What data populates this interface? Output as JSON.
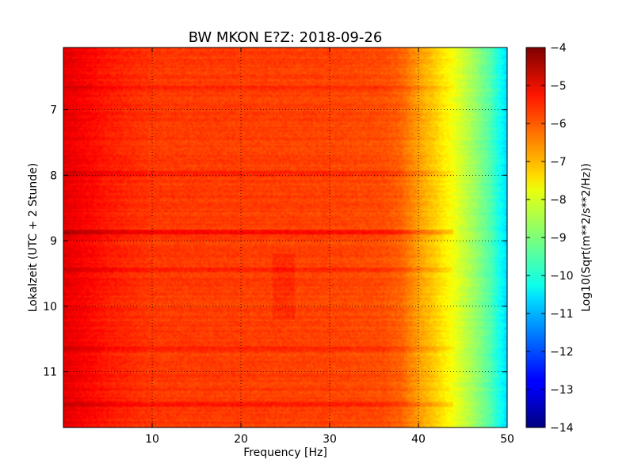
{
  "chart_data": {
    "type": "heatmap",
    "title": "BW MKON E?Z: 2018-09-26",
    "xlabel": "Frequency [Hz]",
    "ylabel": "Lokalzeit (UTC + 2 Stunde)",
    "xlim": [
      0,
      50
    ],
    "ylim": [
      11.85,
      6.05
    ],
    "y_inverted": true,
    "grid": true,
    "x_ticks": [
      10,
      20,
      30,
      40,
      50
    ],
    "x_tick_labels": [
      "10",
      "20",
      "30",
      "40",
      "50"
    ],
    "y_ticks": [
      7,
      8,
      9,
      10,
      11
    ],
    "y_tick_labels": [
      "7",
      "8",
      "9",
      "10",
      "11"
    ],
    "colormap": "jet",
    "colorbar": {
      "label": "Log10(Sqrt(m**2/s**2/Hz))",
      "range": [
        -14,
        -4
      ],
      "ticks": [
        -4,
        -5,
        -6,
        -7,
        -8,
        -9,
        -10,
        -11,
        -12,
        -13,
        -14
      ],
      "tick_labels": [
        "−4",
        "−5",
        "−6",
        "−7",
        "−8",
        "−9",
        "−10",
        "−11",
        "−12",
        "−13",
        "−14"
      ]
    },
    "spectrum_profile": {
      "frequency_hz": [
        0,
        2,
        5,
        10,
        20,
        30,
        36,
        38,
        40,
        42,
        44,
        46,
        48,
        50
      ],
      "log10_amplitude": [
        -5.0,
        -5.2,
        -5.5,
        -5.8,
        -5.85,
        -5.9,
        -6.0,
        -6.2,
        -6.8,
        -7.3,
        -7.9,
        -8.6,
        -9.4,
        -10.6
      ]
    },
    "highlighted_times_h": [
      8.87,
      6.65,
      7.97,
      10.65,
      11.5,
      9.45
    ]
  }
}
